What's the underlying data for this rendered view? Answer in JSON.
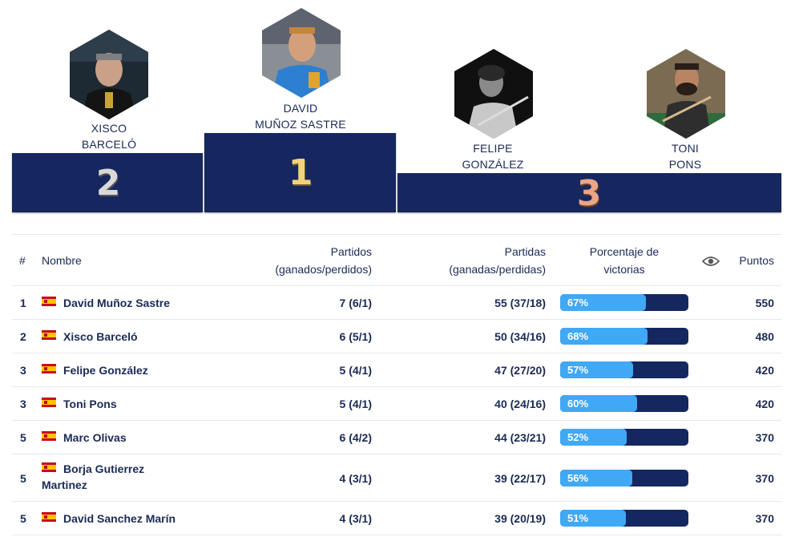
{
  "podium": [
    {
      "position": "2",
      "first": "XISCO",
      "last": "BARCELÓ",
      "digit_color": "#d9d9d9"
    },
    {
      "position": "1",
      "first": "DAVID",
      "last": "MUÑOZ SASTRE",
      "digit_color": "#f2d27a"
    },
    {
      "position": "3",
      "first": "FELIPE",
      "last": "GONZÁLEZ",
      "digit_color": "#e8a58a"
    },
    {
      "position": "3",
      "first": "TONI",
      "last": "PONS",
      "digit_color": "#e8a58a"
    }
  ],
  "table": {
    "headers": {
      "rank": "#",
      "name": "Nombre",
      "matches_line1": "Partidos",
      "matches_line2": "(ganados/perdidos)",
      "games_line1": "Partidas",
      "games_line2": "(ganadas/perdidas)",
      "pct_line1": "Porcentaje de",
      "pct_line2": "victorias",
      "points": "Puntos",
      "view_icon": "eye-icon"
    },
    "rows": [
      {
        "rank": "1",
        "flag": "spain-flag-icon",
        "name": "David Muñoz Sastre",
        "matches": "7 (6/1)",
        "games": "55 (37/18)",
        "pct_label": "67%",
        "pct": 67,
        "points": "550"
      },
      {
        "rank": "2",
        "flag": "spain-flag-icon",
        "name": "Xisco Barceló",
        "matches": "6 (5/1)",
        "games": "50 (34/16)",
        "pct_label": "68%",
        "pct": 68,
        "points": "480"
      },
      {
        "rank": "3",
        "flag": "spain-flag-icon",
        "name": "Felipe González",
        "matches": "5 (4/1)",
        "games": "47 (27/20)",
        "pct_label": "57%",
        "pct": 57,
        "points": "420"
      },
      {
        "rank": "3",
        "flag": "spain-flag-icon",
        "name": "Toni Pons",
        "matches": "5 (4/1)",
        "games": "40 (24/16)",
        "pct_label": "60%",
        "pct": 60,
        "points": "420"
      },
      {
        "rank": "5",
        "flag": "spain-flag-icon",
        "name": "Marc Olivas",
        "matches": "6 (4/2)",
        "games": "44 (23/21)",
        "pct_label": "52%",
        "pct": 52,
        "points": "370"
      },
      {
        "rank": "5",
        "flag": "spain-flag-icon",
        "name": "Borja Gutierrez",
        "name2": "Martinez",
        "matches": "4 (3/1)",
        "games": "39 (22/17)",
        "pct_label": "56%",
        "pct": 56,
        "points": "370"
      },
      {
        "rank": "5",
        "flag": "spain-flag-icon",
        "name": "David Sanchez Marín",
        "matches": "4 (3/1)",
        "games": "39 (20/19)",
        "pct_label": "51%",
        "pct": 51,
        "points": "370"
      }
    ]
  },
  "colors": {
    "navy": "#15275e",
    "bar_fill": "#3fa9f5",
    "bar_bg": "#14275f",
    "flag_red": "#c60b1e",
    "flag_yellow": "#ffc400"
  }
}
